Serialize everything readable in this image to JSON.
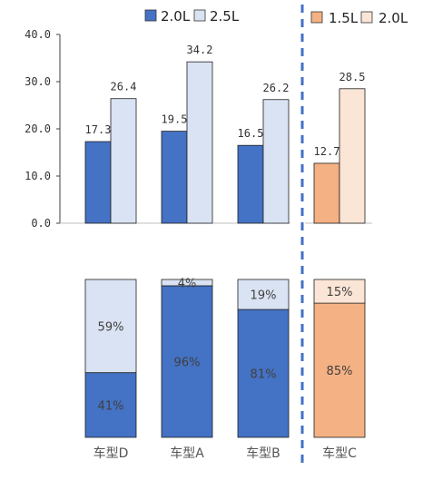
{
  "chart_data": [
    {
      "type": "bar",
      "title": "",
      "categories": [
        "车型D",
        "车型A",
        "车型B",
        "车型C"
      ],
      "series": [
        {
          "name": "2.0L",
          "values": [
            17.3,
            19.5,
            16.5,
            null
          ]
        },
        {
          "name": "2.5L",
          "values": [
            26.4,
            34.2,
            26.2,
            null
          ]
        },
        {
          "name": "1.5L",
          "values": [
            null,
            null,
            null,
            12.7
          ]
        },
        {
          "name": "2.0L",
          "values": [
            null,
            null,
            null,
            28.5
          ]
        }
      ],
      "ylim": [
        0,
        40
      ],
      "yticks": [
        "0.0",
        "10.0",
        "20.0",
        "30.0",
        "40.0"
      ],
      "data_labels": {
        "车型D": [
          "17.3",
          "26.4"
        ],
        "车型A": [
          "19.5",
          "34.2"
        ],
        "车型B": [
          "16.5",
          "26.2"
        ],
        "车型C": [
          "12.7",
          "28.5"
        ]
      },
      "legends": [
        {
          "placement": "top-left",
          "entries": [
            "2.0L",
            "2.5L"
          ],
          "colors": [
            "#4472c4",
            "#dae3f3"
          ]
        },
        {
          "placement": "top-right",
          "entries": [
            "1.5L",
            "2.0L"
          ],
          "colors": [
            "#f4b183",
            "#fbe5d6"
          ]
        }
      ]
    },
    {
      "type": "bar",
      "stacked": true,
      "normalized": true,
      "categories": [
        "车型D",
        "车型A",
        "车型B",
        "车型C"
      ],
      "bottom_values": [
        41,
        96,
        81,
        85
      ],
      "top_values": [
        59,
        4,
        19,
        15
      ],
      "bottom_labels": [
        "41%",
        "96%",
        "81%",
        "85%"
      ],
      "top_labels": [
        "59%",
        "4%",
        "19%",
        "15%"
      ]
    }
  ],
  "colors": {
    "blue": "#4472c4",
    "light_blue": "#dae3f3",
    "orange": "#f4b183",
    "light_orange": "#fbe5d6",
    "divider": "#4472c4"
  }
}
